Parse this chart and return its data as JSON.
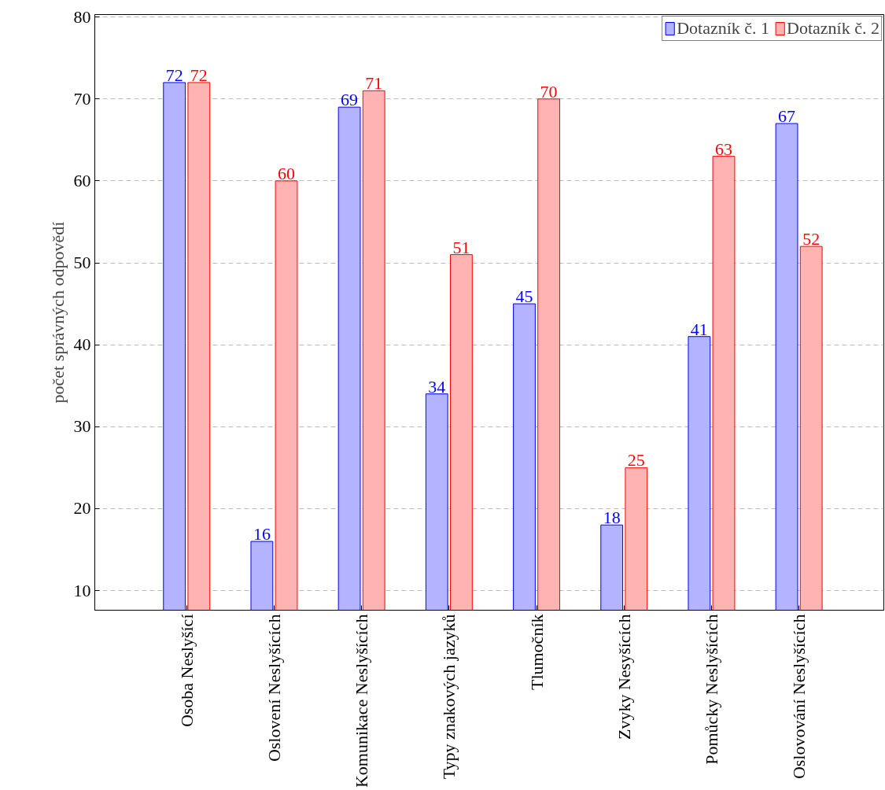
{
  "chart_data": {
    "type": "bar",
    "ylabel": "počet správných odpovědí",
    "categories": [
      "Osoba Neslyšící",
      "Oslovení Neslyšících",
      "Komunikace Neslyšících",
      "Typy znakových jazyků",
      "Tlumočník",
      "Zvyky Nesyšících",
      "Pomůcky Neslyšících",
      "Oslovování Neslyšících"
    ],
    "series": [
      {
        "name": "Dotazník č. 1",
        "color": "#b3b3ff",
        "values": [
          72,
          16,
          69,
          34,
          45,
          18,
          41,
          67
        ]
      },
      {
        "name": "Dotazník č. 2",
        "color": "#ffb3b3",
        "values": [
          72,
          60,
          71,
          51,
          70,
          25,
          63,
          52
        ]
      }
    ],
    "ylim": [
      7.6,
      80.3
    ],
    "yticks": [
      10,
      20,
      30,
      40,
      50,
      60,
      70,
      80
    ],
    "grid": "y",
    "legend": "top right",
    "data_labels": true
  }
}
